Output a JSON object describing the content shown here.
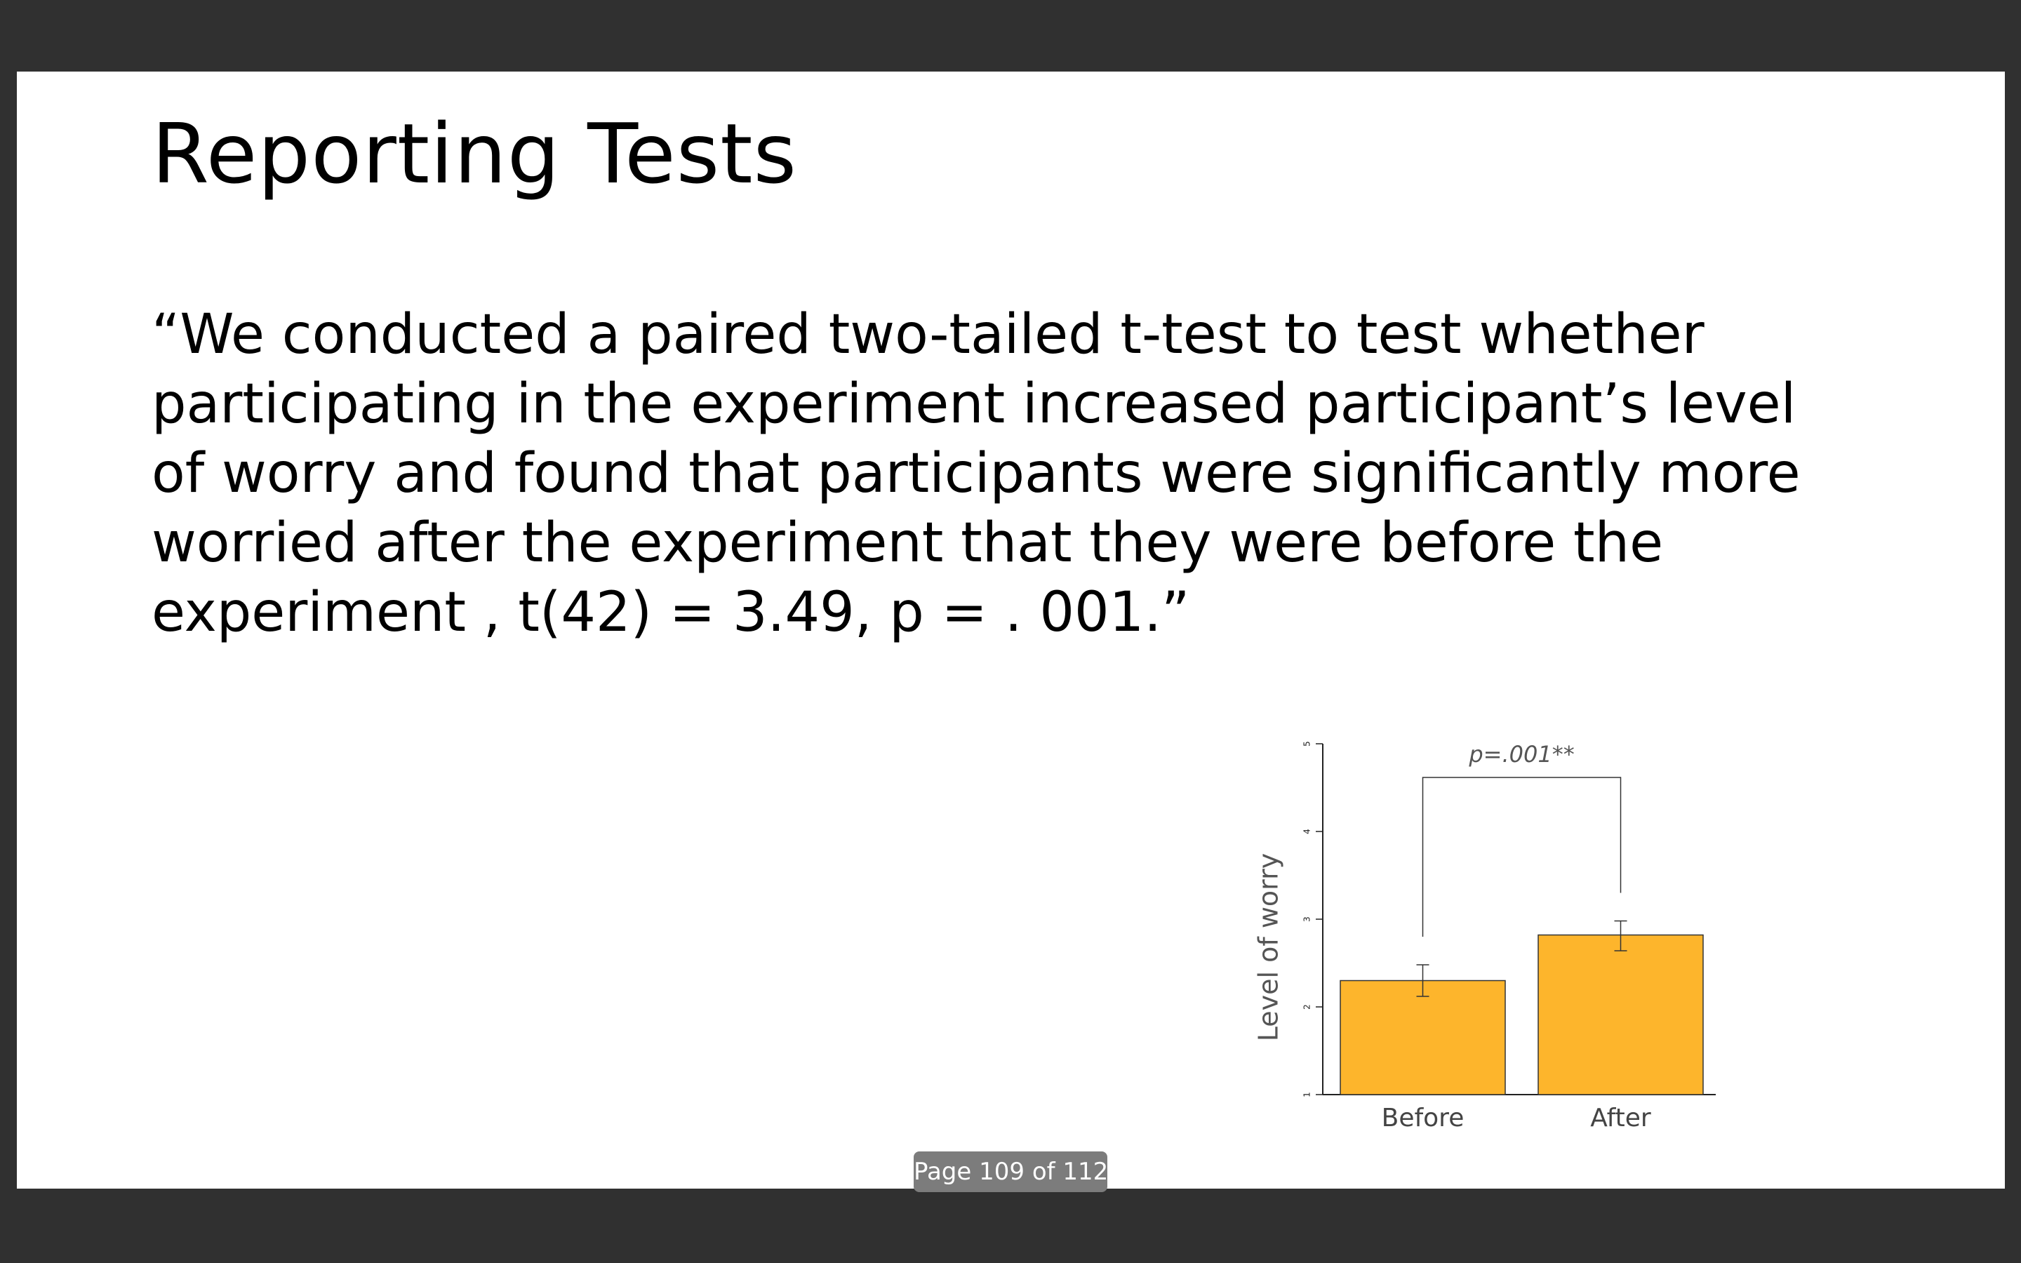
{
  "slide": {
    "title": "Reporting Tests",
    "body_lines": [
      "“We conducted a paired two-tailed t-test to test whether",
      "participating in the experiment increased participant’s level",
      "of worry and found that participants were significantly more",
      "worried after the experiment that they were before the",
      "experiment , t(42) = 3.49, p = . 001.”"
    ]
  },
  "chart_data": {
    "type": "bar",
    "categories": [
      "Before",
      "After"
    ],
    "values": [
      2.3,
      2.82
    ],
    "error": [
      [
        2.12,
        2.48
      ],
      [
        2.64,
        2.98
      ]
    ],
    "ylabel": "Level of worry",
    "ylim": [
      1,
      5
    ],
    "yticks": [
      "1",
      "2",
      "3",
      "4",
      "5"
    ],
    "bar_color": "#FDB52C",
    "annotation": "p=.001**",
    "grid": false
  },
  "viewer": {
    "page_indicator": "Page 109 of 112",
    "background_color": "#303030"
  }
}
